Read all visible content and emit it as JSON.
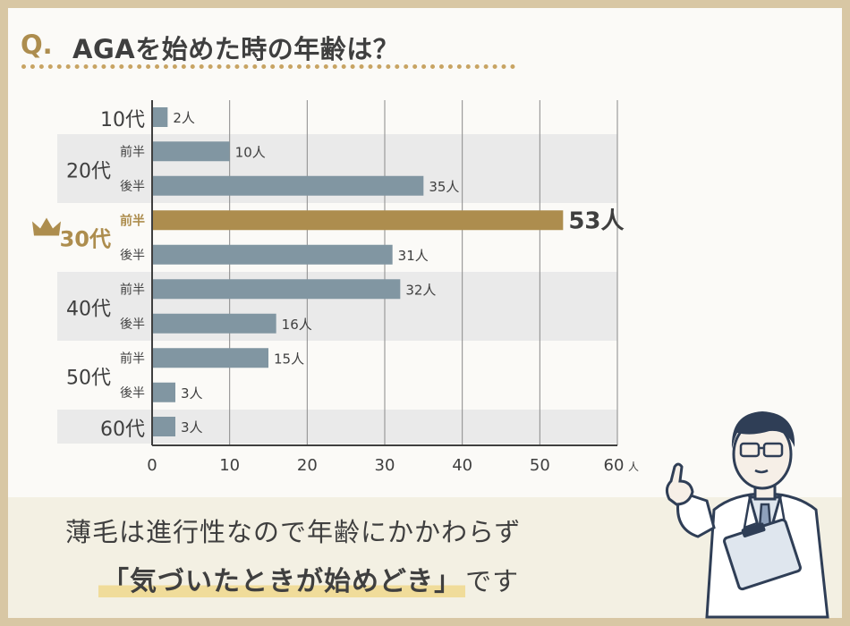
{
  "header": {
    "q_label": "Q.",
    "title": "AGAを始めた時の年齢は？"
  },
  "footer": {
    "line1": "薄毛は進行性なので年齢にかかわらず",
    "highlight": "「気づいたときが始めどき」",
    "tail": "です"
  },
  "colors": {
    "bar": "#8196a2",
    "highlight_bar": "#ad8d4e",
    "band": "#eaeaea",
    "text": "#3f3f3f",
    "gold": "#ad8d4e"
  },
  "chart_data": {
    "type": "bar",
    "orientation": "horizontal",
    "unit": "人",
    "xlim": [
      0,
      60
    ],
    "x_ticks": [
      "0",
      "10",
      "20",
      "30",
      "40",
      "50",
      "60"
    ],
    "groups": [
      {
        "label": "10代",
        "bars": [
          {
            "sub": "",
            "value": 2
          }
        ]
      },
      {
        "label": "20代",
        "bars": [
          {
            "sub": "前半",
            "value": 10
          },
          {
            "sub": "後半",
            "value": 35
          }
        ]
      },
      {
        "label": "30代",
        "highlight": true,
        "icon": "crown-icon",
        "bars": [
          {
            "sub": "前半",
            "value": 53,
            "highlight": true
          },
          {
            "sub": "後半",
            "value": 31
          }
        ]
      },
      {
        "label": "40代",
        "bars": [
          {
            "sub": "前半",
            "value": 32
          },
          {
            "sub": "後半",
            "value": 16
          }
        ]
      },
      {
        "label": "50代",
        "bars": [
          {
            "sub": "前半",
            "value": 15
          },
          {
            "sub": "後半",
            "value": 3
          }
        ]
      },
      {
        "label": "60代",
        "bars": [
          {
            "sub": "",
            "value": 3
          }
        ]
      }
    ]
  }
}
